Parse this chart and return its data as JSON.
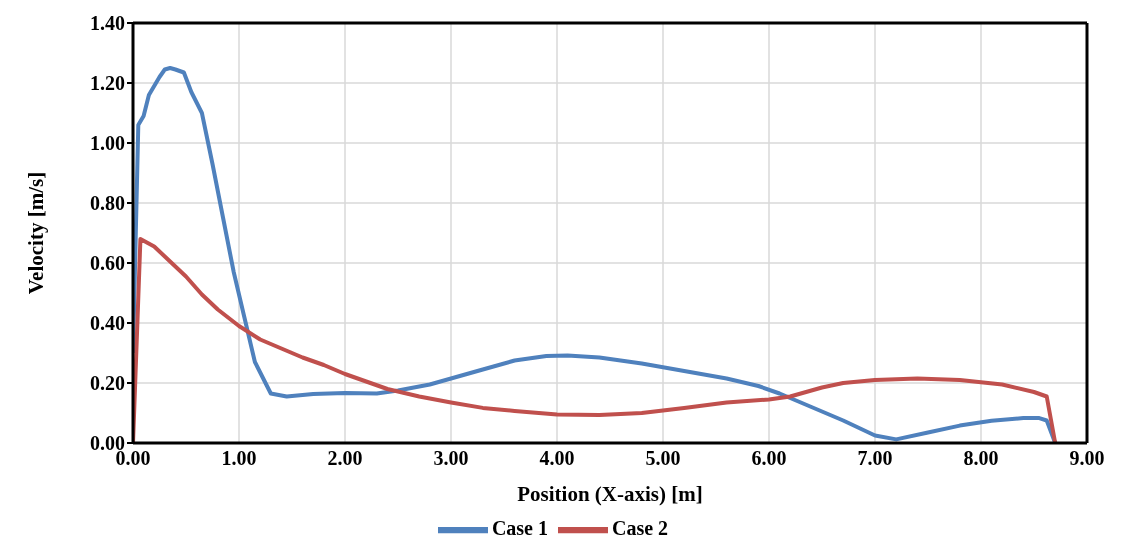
{
  "chart_data": {
    "type": "line",
    "xlabel": "Position (X-axis) [m]",
    "ylabel": "Velocity [m/s]",
    "xlim": [
      0,
      9
    ],
    "xticks": [
      {
        "value": 0,
        "label": "0.00"
      },
      {
        "value": 1,
        "label": "1.00"
      },
      {
        "value": 2,
        "label": "2.00"
      },
      {
        "value": 3,
        "label": "3.00"
      },
      {
        "value": 4,
        "label": "4.00"
      },
      {
        "value": 5,
        "label": "5.00"
      },
      {
        "value": 6,
        "label": "6.00"
      },
      {
        "value": 7,
        "label": "7.00"
      },
      {
        "value": 8,
        "label": "8.00"
      },
      {
        "value": 9,
        "label": "9.00"
      }
    ],
    "ylim": [
      0,
      1.4
    ],
    "yticks": [
      {
        "value": 0,
        "label": "0.00"
      },
      {
        "value": 0.2,
        "label": "0.20"
      },
      {
        "value": 0.4,
        "label": "0.40"
      },
      {
        "value": 0.6,
        "label": "0.60"
      },
      {
        "value": 0.8,
        "label": "0.80"
      },
      {
        "value": 1,
        "label": "1.00"
      },
      {
        "value": 1.2,
        "label": "1.20"
      },
      {
        "value": 1.4,
        "label": "1.40"
      }
    ],
    "grid": true,
    "legend": "bottom",
    "marker": "none",
    "line_style": "solid",
    "series": [
      {
        "name": "Case 1",
        "color": "#4f81bd",
        "x": [
          0,
          0.05,
          0.1,
          0.15,
          0.25,
          0.3,
          0.35,
          0.4,
          0.48,
          0.55,
          0.65,
          0.75,
          0.85,
          0.95,
          1.05,
          1.15,
          1.3,
          1.45,
          1.7,
          2.0,
          2.3,
          2.5,
          2.8,
          3.0,
          3.3,
          3.6,
          3.9,
          4.1,
          4.4,
          4.8,
          5.2,
          5.6,
          5.9,
          6.1,
          6.4,
          6.7,
          7.0,
          7.2,
          7.5,
          7.8,
          8.1,
          8.4,
          8.55,
          8.62,
          8.7
        ],
        "values": [
          0.3,
          1.06,
          1.09,
          1.16,
          1.22,
          1.245,
          1.25,
          1.245,
          1.235,
          1.17,
          1.1,
          0.93,
          0.75,
          0.57,
          0.42,
          0.27,
          0.165,
          0.155,
          0.163,
          0.167,
          0.165,
          0.175,
          0.195,
          0.215,
          0.245,
          0.275,
          0.29,
          0.292,
          0.285,
          0.265,
          0.24,
          0.215,
          0.19,
          0.165,
          0.12,
          0.075,
          0.025,
          0.012,
          0.035,
          0.058,
          0.074,
          0.083,
          0.083,
          0.075,
          0
        ]
      },
      {
        "name": "Case 2",
        "color": "#c0504d",
        "x": [
          0,
          0.07,
          0.2,
          0.35,
          0.5,
          0.65,
          0.8,
          1.0,
          1.2,
          1.4,
          1.6,
          1.8,
          2.0,
          2.2,
          2.4,
          2.7,
          3.0,
          3.3,
          3.6,
          4.0,
          4.4,
          4.8,
          5.2,
          5.6,
          6.0,
          6.2,
          6.5,
          6.7,
          7.0,
          7.4,
          7.8,
          8.2,
          8.5,
          8.62,
          8.7
        ],
        "values": [
          0,
          0.68,
          0.655,
          0.605,
          0.555,
          0.495,
          0.445,
          0.39,
          0.345,
          0.315,
          0.285,
          0.26,
          0.23,
          0.205,
          0.18,
          0.155,
          0.135,
          0.117,
          0.107,
          0.095,
          0.093,
          0.1,
          0.117,
          0.135,
          0.145,
          0.155,
          0.185,
          0.2,
          0.21,
          0.215,
          0.21,
          0.195,
          0.17,
          0.155,
          0
        ]
      }
    ]
  }
}
